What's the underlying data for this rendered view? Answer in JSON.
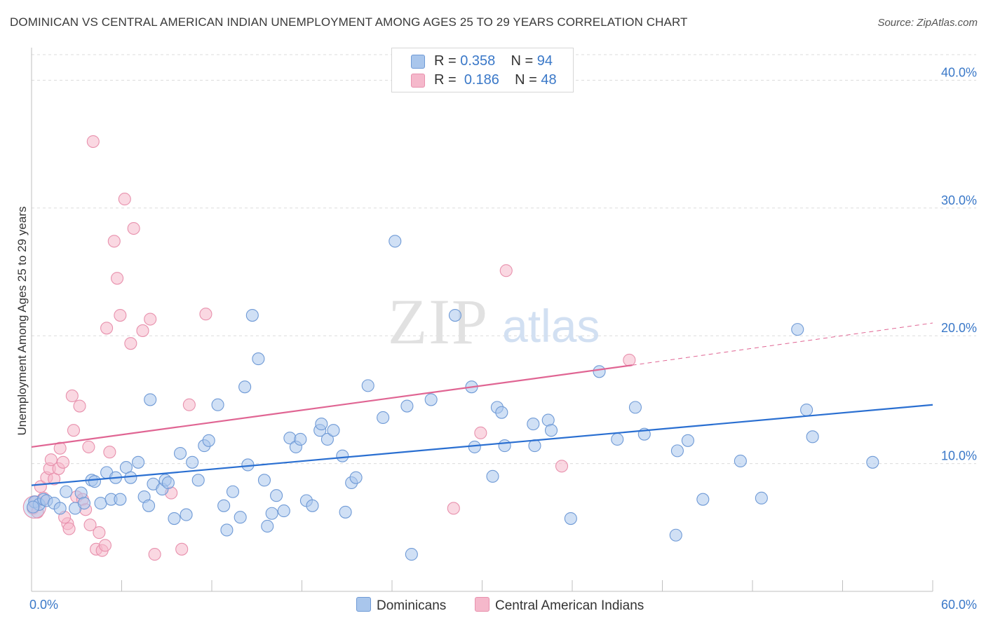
{
  "title": "DOMINICAN VS CENTRAL AMERICAN INDIAN UNEMPLOYMENT AMONG AGES 25 TO 29 YEARS CORRELATION CHART",
  "source": "Source: ZipAtlas.com",
  "watermark": {
    "zip": "ZIP",
    "atlas": "atlas"
  },
  "legend_top": {
    "rows": [
      {
        "r_label": "R = ",
        "r_value": "0.358",
        "n_label": "N = ",
        "n_value": "94"
      },
      {
        "r_label": "R = ",
        "r_value": "0.186",
        "n_label": "N = ",
        "n_value": "48"
      }
    ]
  },
  "legend_bottom": {
    "items": [
      "Dominicans",
      "Central American Indians"
    ]
  },
  "colors": {
    "blue_fill": "#a9c6ec",
    "blue_stroke": "#6f9ad6",
    "blue_line": "#2a6fd1",
    "pink_fill": "#f5b8cb",
    "pink_stroke": "#e891ad",
    "pink_line": "#e06593",
    "axis_text": "#3a78c8"
  },
  "chart_data": {
    "type": "scatter",
    "title": "DOMINICAN VS CENTRAL AMERICAN INDIAN UNEMPLOYMENT AMONG AGES 25 TO 29 YEARS CORRELATION CHART",
    "xlabel": "",
    "ylabel": "Unemployment Among Ages 25 to 29 years",
    "xlim": [
      0,
      60
    ],
    "ylim": [
      0,
      42
    ],
    "x_tick_labels": [
      "0.0%",
      "60.0%"
    ],
    "y_ticks": [
      10,
      20,
      30,
      40
    ],
    "y_tick_labels": [
      "10.0%",
      "20.0%",
      "30.0%",
      "40.0%"
    ],
    "grid": true,
    "legend_position": "top-center",
    "series": [
      {
        "name": "Dominicans",
        "R": 0.358,
        "N": 94,
        "trend": {
          "x": [
            0,
            60
          ],
          "y": [
            8.3,
            14.6
          ]
        },
        "points": [
          [
            0.2,
            7.0
          ],
          [
            0.5,
            6.8
          ],
          [
            0.8,
            7.2
          ],
          [
            1.0,
            7.1
          ],
          [
            1.5,
            6.9
          ],
          [
            1.9,
            6.5
          ],
          [
            2.3,
            7.8
          ],
          [
            2.9,
            6.5
          ],
          [
            3.3,
            7.7
          ],
          [
            3.5,
            6.9
          ],
          [
            4.0,
            8.7
          ],
          [
            4.2,
            8.6
          ],
          [
            4.6,
            6.9
          ],
          [
            5.0,
            9.3
          ],
          [
            5.3,
            7.2
          ],
          [
            5.6,
            8.9
          ],
          [
            5.9,
            7.2
          ],
          [
            6.3,
            9.7
          ],
          [
            6.6,
            8.9
          ],
          [
            7.1,
            10.1
          ],
          [
            7.5,
            7.4
          ],
          [
            7.8,
            6.7
          ],
          [
            7.9,
            15.0
          ],
          [
            8.1,
            8.4
          ],
          [
            8.7,
            8.0
          ],
          [
            8.9,
            8.7
          ],
          [
            9.1,
            8.5
          ],
          [
            9.5,
            5.7
          ],
          [
            9.9,
            10.8
          ],
          [
            10.3,
            6.0
          ],
          [
            10.7,
            10.1
          ],
          [
            11.1,
            8.7
          ],
          [
            11.5,
            11.4
          ],
          [
            11.8,
            11.8
          ],
          [
            12.4,
            14.6
          ],
          [
            12.8,
            6.7
          ],
          [
            13.0,
            4.8
          ],
          [
            13.4,
            7.8
          ],
          [
            13.9,
            5.8
          ],
          [
            14.2,
            16.0
          ],
          [
            14.4,
            9.9
          ],
          [
            14.7,
            21.6
          ],
          [
            15.1,
            18.2
          ],
          [
            15.5,
            8.7
          ],
          [
            15.7,
            5.1
          ],
          [
            16.0,
            6.1
          ],
          [
            16.3,
            7.5
          ],
          [
            16.8,
            6.3
          ],
          [
            17.2,
            12.0
          ],
          [
            17.6,
            11.3
          ],
          [
            17.9,
            11.9
          ],
          [
            18.3,
            7.1
          ],
          [
            18.7,
            6.7
          ],
          [
            19.2,
            12.6
          ],
          [
            19.3,
            13.1
          ],
          [
            19.7,
            11.9
          ],
          [
            20.1,
            12.6
          ],
          [
            20.7,
            10.6
          ],
          [
            20.9,
            6.2
          ],
          [
            21.3,
            8.5
          ],
          [
            21.6,
            8.9
          ],
          [
            22.4,
            16.1
          ],
          [
            23.4,
            13.6
          ],
          [
            24.2,
            27.4
          ],
          [
            25.0,
            14.5
          ],
          [
            25.3,
            2.9
          ],
          [
            26.6,
            15.0
          ],
          [
            28.2,
            21.6
          ],
          [
            29.3,
            16.0
          ],
          [
            29.5,
            11.3
          ],
          [
            30.7,
            9.0
          ],
          [
            31.0,
            14.4
          ],
          [
            31.3,
            14.0
          ],
          [
            31.5,
            11.4
          ],
          [
            33.4,
            13.1
          ],
          [
            33.5,
            11.4
          ],
          [
            34.4,
            13.4
          ],
          [
            34.6,
            12.6
          ],
          [
            35.9,
            5.7
          ],
          [
            37.8,
            17.2
          ],
          [
            39.0,
            11.9
          ],
          [
            40.2,
            14.4
          ],
          [
            40.8,
            12.3
          ],
          [
            42.9,
            4.4
          ],
          [
            43.0,
            11.0
          ],
          [
            43.7,
            11.8
          ],
          [
            44.7,
            7.2
          ],
          [
            47.2,
            10.2
          ],
          [
            48.6,
            7.3
          ],
          [
            51.0,
            20.5
          ],
          [
            51.6,
            14.2
          ],
          [
            52.0,
            12.1
          ],
          [
            56.0,
            10.1
          ],
          [
            0.1,
            6.6
          ]
        ]
      },
      {
        "name": "Central American Indians",
        "R": 0.186,
        "N": 48,
        "trend": {
          "x": [
            0,
            40
          ],
          "y": [
            11.3,
            17.7
          ]
        },
        "trend_dashed": {
          "x": [
            40,
            60
          ],
          "y": [
            17.7,
            21.0
          ]
        },
        "points": [
          [
            0.1,
            6.5
          ],
          [
            0.3,
            7.0
          ],
          [
            0.6,
            8.2
          ],
          [
            0.8,
            7.3
          ],
          [
            1.0,
            8.9
          ],
          [
            1.2,
            9.6
          ],
          [
            1.3,
            10.3
          ],
          [
            1.5,
            8.8
          ],
          [
            1.8,
            9.6
          ],
          [
            1.9,
            11.2
          ],
          [
            2.1,
            10.1
          ],
          [
            2.4,
            5.3
          ],
          [
            2.5,
            4.9
          ],
          [
            2.7,
            15.3
          ],
          [
            2.8,
            12.6
          ],
          [
            3.0,
            7.4
          ],
          [
            3.2,
            14.5
          ],
          [
            3.4,
            7.2
          ],
          [
            3.6,
            6.4
          ],
          [
            3.8,
            11.3
          ],
          [
            3.9,
            5.2
          ],
          [
            4.1,
            35.2
          ],
          [
            4.3,
            3.3
          ],
          [
            4.5,
            4.6
          ],
          [
            4.7,
            3.2
          ],
          [
            4.9,
            3.6
          ],
          [
            5.0,
            20.6
          ],
          [
            5.2,
            10.9
          ],
          [
            5.5,
            27.4
          ],
          [
            5.7,
            24.5
          ],
          [
            5.9,
            21.6
          ],
          [
            6.2,
            30.7
          ],
          [
            6.6,
            19.4
          ],
          [
            6.8,
            28.4
          ],
          [
            7.4,
            20.4
          ],
          [
            7.9,
            21.3
          ],
          [
            8.2,
            2.9
          ],
          [
            9.3,
            7.7
          ],
          [
            10.0,
            3.3
          ],
          [
            10.5,
            14.6
          ],
          [
            11.6,
            21.7
          ],
          [
            28.1,
            6.5
          ],
          [
            29.9,
            12.4
          ],
          [
            31.6,
            25.1
          ],
          [
            35.3,
            9.8
          ],
          [
            39.8,
            18.1
          ],
          [
            0.4,
            6.2
          ],
          [
            2.2,
            5.8
          ]
        ]
      }
    ]
  }
}
